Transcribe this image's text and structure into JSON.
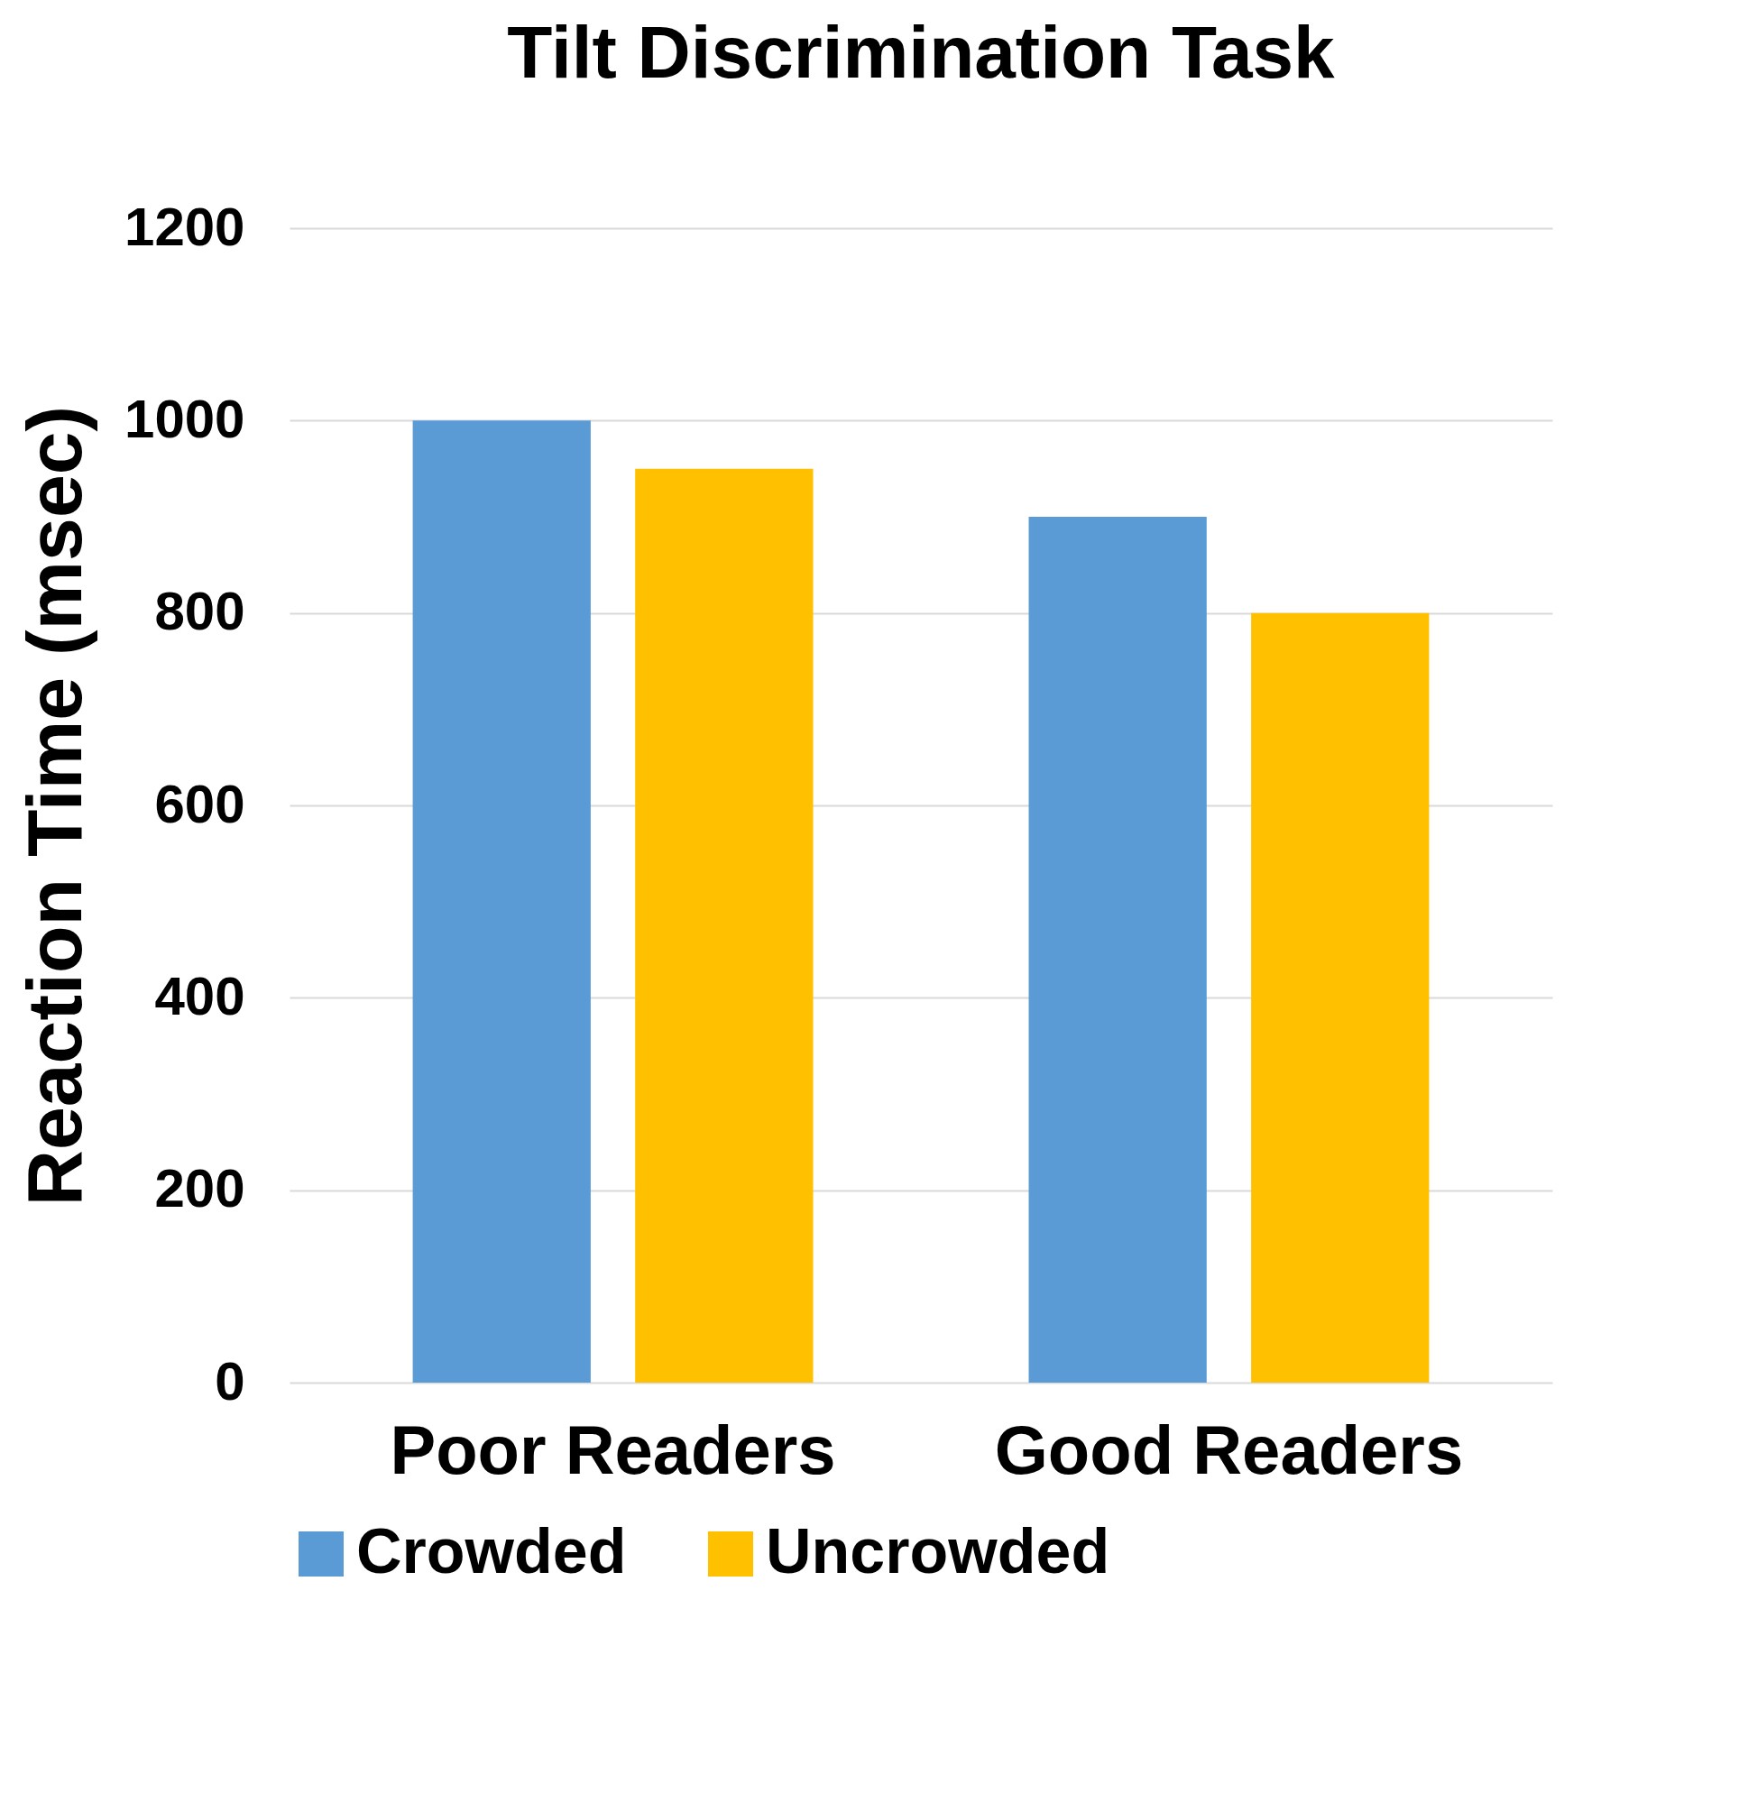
{
  "chart_data": {
    "type": "bar",
    "title": "Tilt Discrimination Task",
    "ylabel": "Reaction Time (msec)",
    "categories": [
      "Poor Readers",
      "Good Readers"
    ],
    "series": [
      {
        "name": "Crowded",
        "color": "#5b9bd5",
        "values": [
          1000,
          900
        ]
      },
      {
        "name": "Uncrowded",
        "color": "#ffc000",
        "values": [
          950,
          800
        ]
      }
    ],
    "ylim": [
      0,
      1200
    ],
    "yticks": [
      0,
      200,
      400,
      600,
      800,
      1000,
      1200
    ],
    "grid": "y",
    "legend": "bottom"
  }
}
